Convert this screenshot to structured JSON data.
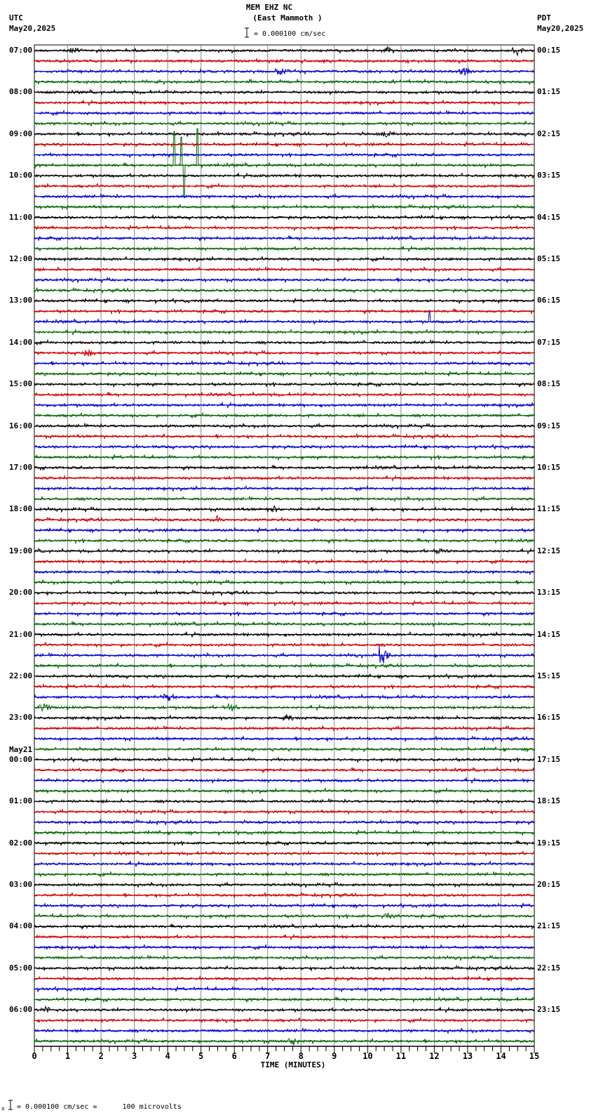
{
  "header": {
    "station": "MEM EHZ NC",
    "location": "(East Mammoth )",
    "left_tz": "UTC",
    "left_date": "May20,2025",
    "right_tz": "PDT",
    "right_date": "May20,2025",
    "scale_label": "= 0.000100 cm/sec"
  },
  "footer": {
    "scale_label": "= 0.000100 cm/sec =      100 microvolts",
    "scale_prefix": "x"
  },
  "chart_data": {
    "type": "line",
    "title": "MEM EHZ NC (East Mammoth ) helicorder",
    "xlabel": "TIME (MINUTES)",
    "ylabel": "",
    "x_ticks": [
      0,
      1,
      2,
      3,
      4,
      5,
      6,
      7,
      8,
      9,
      10,
      11,
      12,
      13,
      14,
      15
    ],
    "xlim": [
      0,
      15
    ],
    "minor_tick_interval_min": 0.25,
    "grid": "vertical lines every 1 minute",
    "trace_interval_min": 15,
    "trace_count": 96,
    "trace_colors": [
      "#000000",
      "#cc0000",
      "#0000cc",
      "#006600"
    ],
    "left_labels": [
      "07:00",
      "08:00",
      "09:00",
      "10:00",
      "11:00",
      "12:00",
      "13:00",
      "14:00",
      "15:00",
      "16:00",
      "17:00",
      "18:00",
      "19:00",
      "20:00",
      "21:00",
      "22:00",
      "23:00",
      "00:00",
      "01:00",
      "02:00",
      "03:00",
      "04:00",
      "05:00",
      "06:00"
    ],
    "left_date_change": {
      "label": "May21",
      "before_hour": "00:00"
    },
    "right_labels": [
      "00:15",
      "01:15",
      "02:15",
      "03:15",
      "04:15",
      "05:15",
      "06:15",
      "07:15",
      "08:15",
      "09:15",
      "10:15",
      "11:15",
      "12:15",
      "13:15",
      "14:15",
      "15:15",
      "16:15",
      "17:15",
      "18:15",
      "19:15",
      "20:15",
      "21:15",
      "22:15",
      "23:15"
    ],
    "events": [
      {
        "trace": 11,
        "minute": 4.2,
        "amp": 48,
        "kind": "spike",
        "note": "large green transient 09:45 UTC"
      },
      {
        "trace": 11,
        "minute": 4.4,
        "amp": 40,
        "kind": "spike"
      },
      {
        "trace": 11,
        "minute": 4.9,
        "amp": 52,
        "kind": "spike"
      },
      {
        "trace": 11,
        "minute": 4.5,
        "amp": -45,
        "kind": "spike"
      },
      {
        "trace": 58,
        "minute": 10.35,
        "amp": 30,
        "kind": "quake",
        "note": "blue event 21:30 UTC"
      },
      {
        "trace": 26,
        "minute": 11.85,
        "amp": 14,
        "kind": "spike"
      },
      {
        "trace": 0,
        "minute": 1.2,
        "amp": 7,
        "kind": "burst"
      },
      {
        "trace": 0,
        "minute": 10.6,
        "amp": 6,
        "kind": "burst"
      },
      {
        "trace": 0,
        "minute": 14.5,
        "amp": 8,
        "kind": "burst"
      },
      {
        "trace": 2,
        "minute": 7.4,
        "amp": 8,
        "kind": "burst"
      },
      {
        "trace": 2,
        "minute": 12.9,
        "amp": 7,
        "kind": "burst"
      },
      {
        "trace": 8,
        "minute": 10.6,
        "amp": 6,
        "kind": "burst"
      },
      {
        "trace": 29,
        "minute": 1.6,
        "amp": 6,
        "kind": "burst"
      },
      {
        "trace": 44,
        "minute": 7.2,
        "amp": 6,
        "kind": "burst"
      },
      {
        "trace": 45,
        "minute": 5.5,
        "amp": 7,
        "kind": "burst"
      },
      {
        "trace": 48,
        "minute": 12.2,
        "amp": 6,
        "kind": "burst"
      },
      {
        "trace": 62,
        "minute": 4.0,
        "amp": 6,
        "kind": "burst"
      },
      {
        "trace": 63,
        "minute": 0.3,
        "amp": 8,
        "kind": "burst"
      },
      {
        "trace": 63,
        "minute": 5.9,
        "amp": 7,
        "kind": "burst"
      },
      {
        "trace": 64,
        "minute": 7.6,
        "amp": 6,
        "kind": "burst"
      },
      {
        "trace": 83,
        "minute": 10.6,
        "amp": 7,
        "kind": "burst"
      },
      {
        "trace": 92,
        "minute": 0.3,
        "amp": 7,
        "kind": "burst"
      },
      {
        "trace": 95,
        "minute": 7.8,
        "amp": 8,
        "kind": "burst"
      }
    ]
  }
}
